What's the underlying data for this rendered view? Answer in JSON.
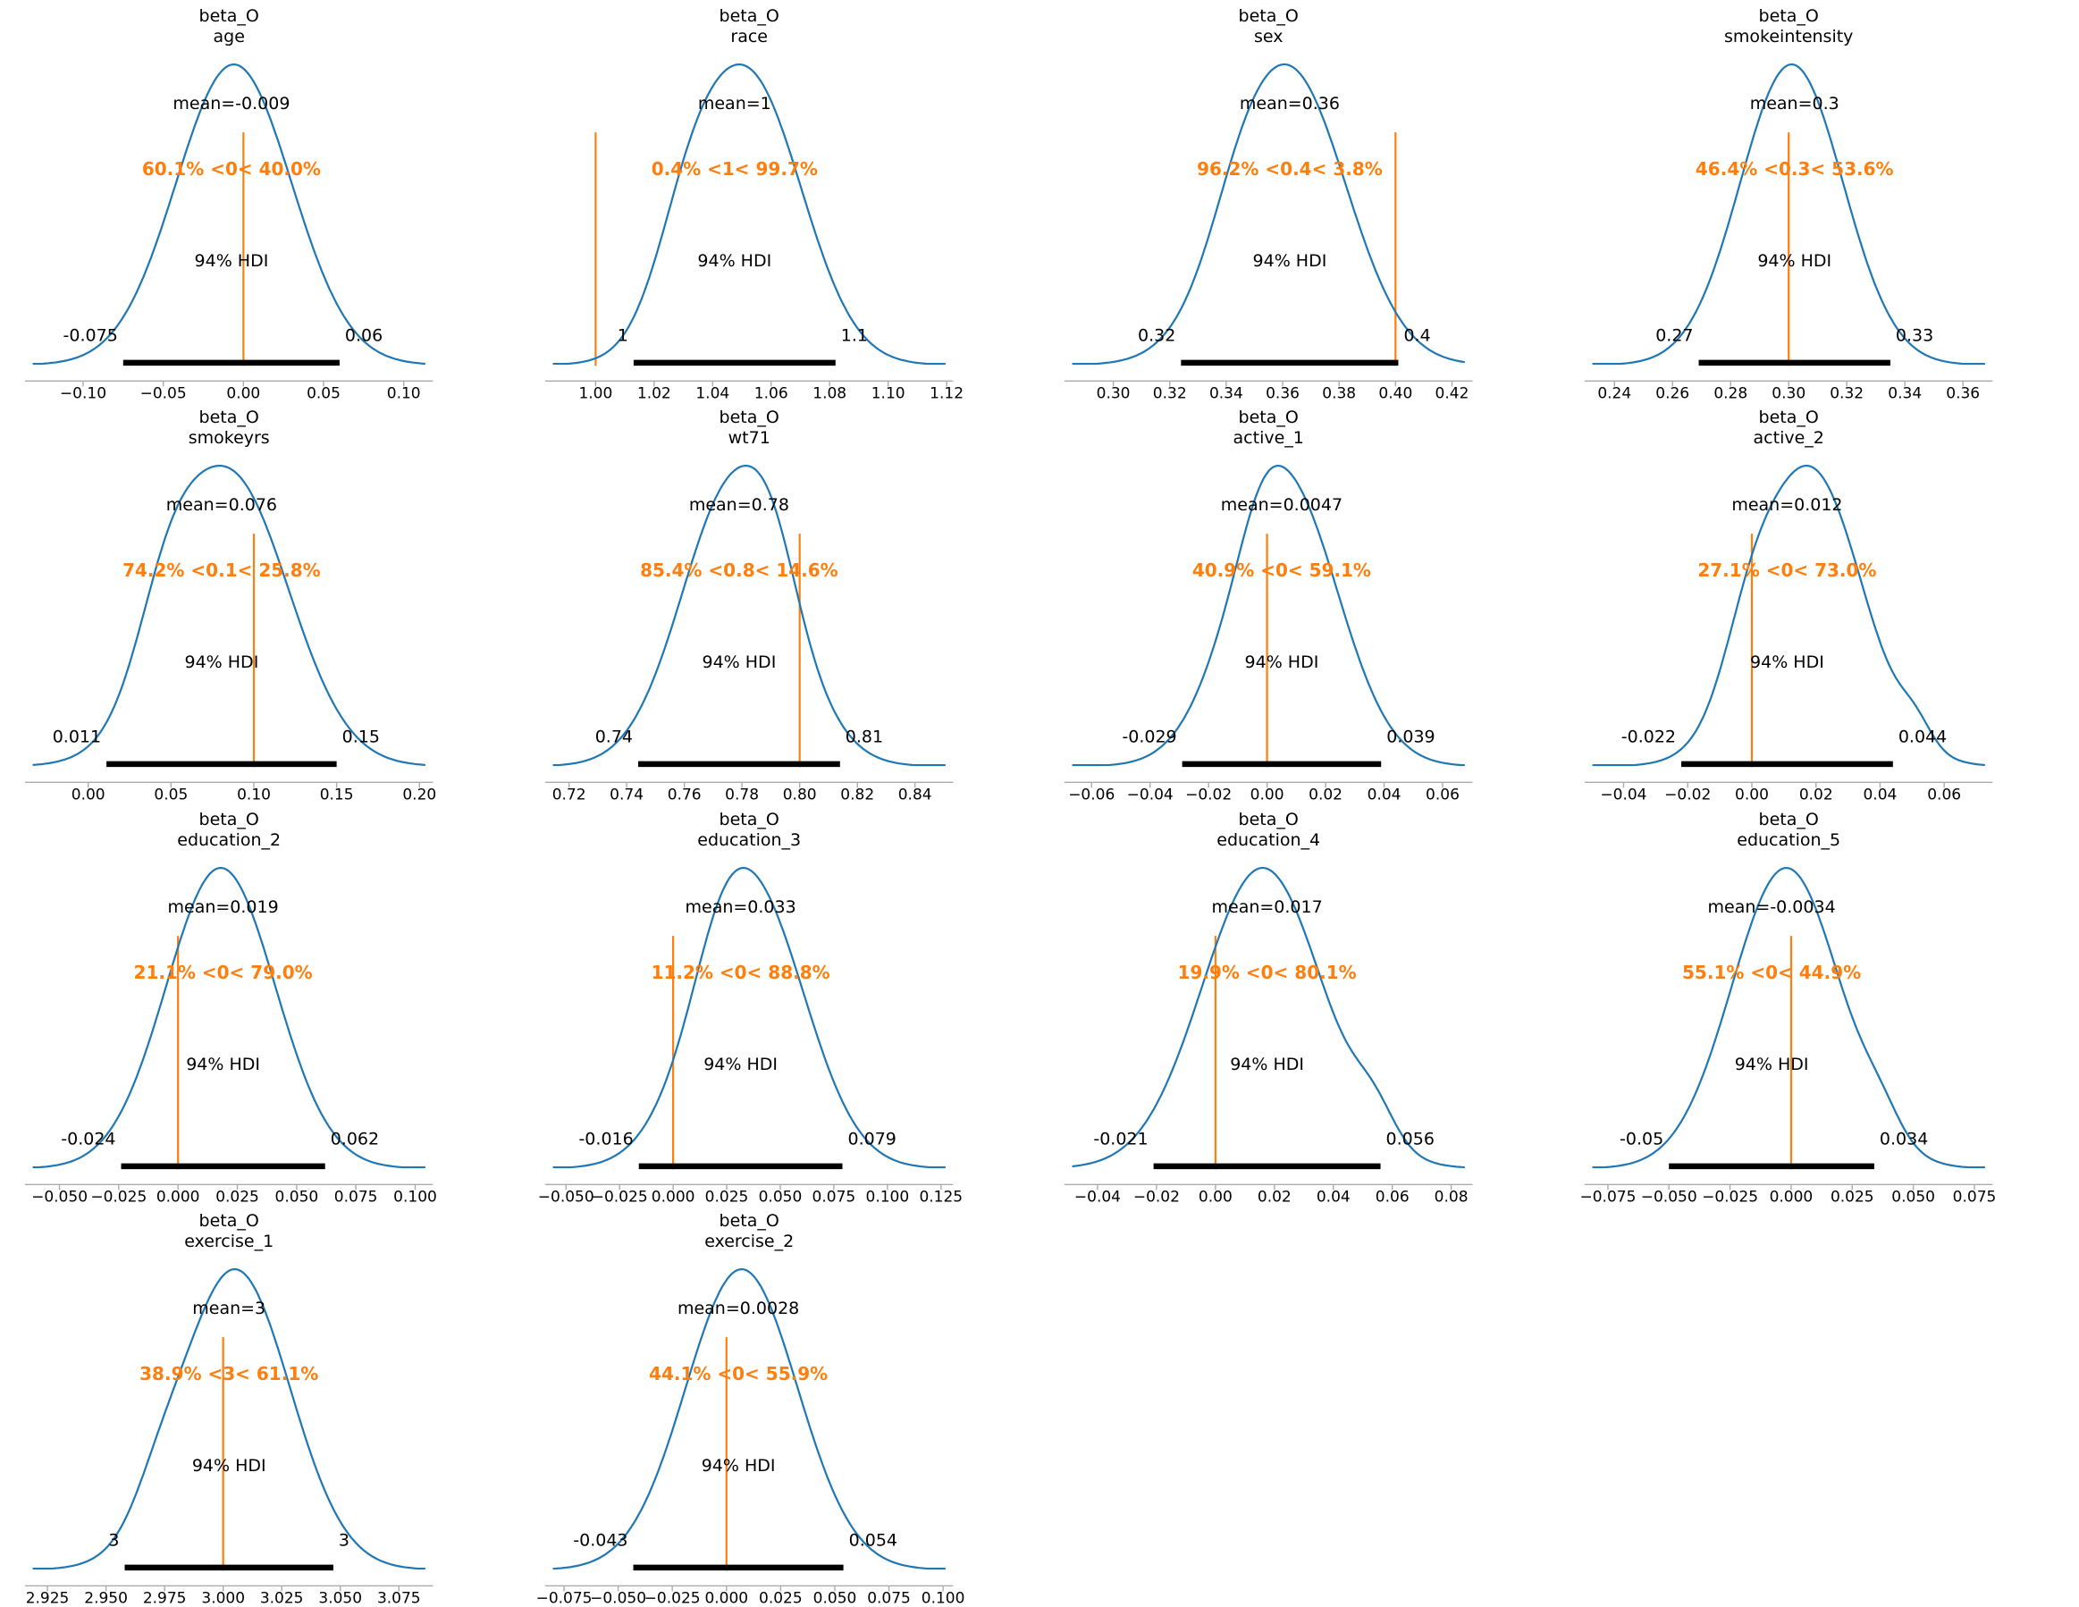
{
  "figure_title": "",
  "chart_data": {
    "type": "kde",
    "description": "Grid of ArviZ-style posterior density plots for coefficients of beta_O",
    "grid": {
      "columns": 4,
      "rows": 4,
      "filled_cells": 14
    },
    "legend_position": "none",
    "grid_lines": false,
    "colors": {
      "curve": "#1f77b4",
      "ref_line": "#ff7f0e",
      "rope_text": "#ff7f0e",
      "hdi_bar": "#000000",
      "axis": "#ababab",
      "text": "#000000",
      "background": "#ffffff"
    },
    "plots": [
      {
        "variable": "age",
        "title": [
          "beta_O",
          "age"
        ],
        "mean_label": "mean=-0.009",
        "mean": -0.009,
        "rope_label": "60.1% <0< 40.0%",
        "pct_below": 60.1,
        "ref_val": 0,
        "pct_above": 40.0,
        "hdi_text": "94% HDI",
        "hdi": [
          -0.075,
          0.06
        ],
        "hdi_labels": [
          "-0.075",
          "0.06"
        ],
        "x_range": [
          -0.134,
          0.116
        ],
        "ticks": [
          -0.1,
          -0.05,
          0.0,
          0.05,
          0.1
        ],
        "tick_labels": [
          "−0.10",
          "−0.05",
          "0.00",
          "0.05",
          "0.10"
        ],
        "curve": {
          "mu": -0.006,
          "sigma": 0.036,
          "bumps": []
        }
      },
      {
        "variable": "race",
        "title": [
          "beta_O",
          "race"
        ],
        "mean_label": "mean=1",
        "mean": 1.048,
        "rope_label": "0.4% <1< 99.7%",
        "pct_below": 0.4,
        "ref_val": 1,
        "pct_above": 99.7,
        "hdi_text": "94% HDI",
        "hdi": [
          1.013,
          1.082
        ],
        "hdi_labels": [
          "1",
          "1.1"
        ],
        "x_range": [
          0.984,
          1.121
        ],
        "ticks": [
          1.0,
          1.02,
          1.04,
          1.06,
          1.08,
          1.1,
          1.12
        ],
        "tick_labels": [
          "1.00",
          "1.02",
          "1.04",
          "1.06",
          "1.08",
          "1.10",
          "1.12"
        ],
        "curve": {
          "mu": 1.052,
          "sigma": 0.0185,
          "bumps": [
            [
              1.031,
              0.011,
              0.22
            ]
          ]
        }
      },
      {
        "variable": "sex",
        "title": [
          "beta_O",
          "sex"
        ],
        "mean_label": "mean=0.36",
        "mean": 0.36,
        "rope_label": "96.2% <0.4< 3.8%",
        "pct_below": 96.2,
        "ref_val": 0.4,
        "pct_above": 3.8,
        "hdi_text": "94% HDI",
        "hdi": [
          0.324,
          0.401
        ],
        "hdi_labels": [
          "0.32",
          "0.4"
        ],
        "x_range": [
          0.284,
          0.426
        ],
        "ticks": [
          0.3,
          0.32,
          0.34,
          0.36,
          0.38,
          0.4,
          0.42
        ],
        "tick_labels": [
          "0.30",
          "0.32",
          "0.34",
          "0.36",
          "0.38",
          "0.40",
          "0.42"
        ],
        "curve": {
          "mu": 0.362,
          "sigma": 0.0205,
          "bumps": [
            [
              0.344,
              0.01,
              0.08
            ]
          ]
        }
      },
      {
        "variable": "smokeintensity",
        "title": [
          "beta_O",
          "smokeintensity"
        ],
        "mean_label": "mean=0.3",
        "mean": 0.3,
        "rope_label": "46.4% <0.3< 53.6%",
        "pct_below": 46.4,
        "ref_val": 0.3,
        "pct_above": 53.6,
        "hdi_text": "94% HDI",
        "hdi": [
          0.269,
          0.335
        ],
        "hdi_labels": [
          "0.27",
          "0.33"
        ],
        "x_range": [
          0.231,
          0.369
        ],
        "ticks": [
          0.24,
          0.26,
          0.28,
          0.3,
          0.32,
          0.34,
          0.36
        ],
        "tick_labels": [
          "0.24",
          "0.26",
          "0.28",
          "0.30",
          "0.32",
          "0.34",
          "0.36"
        ],
        "curve": {
          "mu": 0.301,
          "sigma": 0.0177,
          "bumps": []
        }
      },
      {
        "variable": "smokeyrs",
        "title": [
          "beta_O",
          "smokeyrs"
        ],
        "mean_label": "mean=0.076",
        "mean": 0.076,
        "rope_label": "74.2% <0.1< 25.8%",
        "pct_below": 74.2,
        "ref_val": 0.1,
        "pct_above": 25.8,
        "hdi_text": "94% HDI",
        "hdi": [
          0.011,
          0.15
        ],
        "hdi_labels": [
          "0.011",
          "0.15"
        ],
        "x_range": [
          -0.036,
          0.206
        ],
        "ticks": [
          0.0,
          0.05,
          0.1,
          0.15,
          0.2
        ],
        "tick_labels": [
          "0.00",
          "0.05",
          "0.10",
          "0.15",
          "0.20"
        ],
        "curve": {
          "mu": 0.085,
          "sigma": 0.036,
          "bumps": [
            [
              0.047,
              0.018,
              0.22
            ]
          ]
        }
      },
      {
        "variable": "wt71",
        "title": [
          "beta_O",
          "wt71"
        ],
        "mean_label": "mean=0.78",
        "mean": 0.78,
        "rope_label": "85.4% <0.8< 14.6%",
        "pct_below": 85.4,
        "ref_val": 0.8,
        "pct_above": 14.6,
        "hdi_text": "94% HDI",
        "hdi": [
          0.744,
          0.814
        ],
        "hdi_labels": [
          "0.74",
          "0.81"
        ],
        "x_range": [
          0.713,
          0.852
        ],
        "ticks": [
          0.72,
          0.74,
          0.76,
          0.78,
          0.8,
          0.82,
          0.84
        ],
        "tick_labels": [
          "0.72",
          "0.74",
          "0.76",
          "0.78",
          "0.80",
          "0.82",
          "0.84"
        ],
        "curve": {
          "mu": 0.778,
          "sigma": 0.0186,
          "bumps": [
            [
              0.791,
              0.008,
              0.13
            ]
          ]
        }
      },
      {
        "variable": "active_1",
        "title": [
          "beta_O",
          "active_1"
        ],
        "mean_label": "mean=0.0047",
        "mean": 0.0047,
        "rope_label": "40.9% <0< 59.1%",
        "pct_below": 40.9,
        "ref_val": 0,
        "pct_above": 59.1,
        "hdi_text": "94% HDI",
        "hdi": [
          -0.029,
          0.039
        ],
        "hdi_labels": [
          "-0.029",
          "0.039"
        ],
        "x_range": [
          -0.068,
          0.069
        ],
        "ticks": [
          -0.06,
          -0.04,
          -0.02,
          0.0,
          0.02,
          0.04,
          0.06
        ],
        "tick_labels": [
          "−0.06",
          "−0.04",
          "−0.02",
          "0.00",
          "0.02",
          "0.04",
          "0.06"
        ],
        "curve": {
          "mu": 0.006,
          "sigma": 0.0182,
          "bumps": [
            [
              -0.002,
              0.007,
              0.08
            ]
          ]
        }
      },
      {
        "variable": "active_2",
        "title": [
          "beta_O",
          "active_2"
        ],
        "mean_label": "mean=0.012",
        "mean": 0.012,
        "rope_label": "27.1% <0< 73.0%",
        "pct_below": 27.1,
        "ref_val": 0,
        "pct_above": 73.0,
        "hdi_text": "94% HDI",
        "hdi": [
          -0.022,
          0.044
        ],
        "hdi_labels": [
          "-0.022",
          "0.044"
        ],
        "x_range": [
          -0.051,
          0.074
        ],
        "ticks": [
          -0.04,
          -0.02,
          0.0,
          0.02,
          0.04,
          0.06
        ],
        "tick_labels": [
          "−0.04",
          "−0.02",
          "0.00",
          "0.02",
          "0.04",
          "0.06"
        ],
        "curve": {
          "mu": 0.018,
          "sigma": 0.0165,
          "bumps": [
            [
              -0.001,
              0.008,
              0.16
            ],
            [
              0.051,
              0.005,
              0.07
            ]
          ]
        }
      },
      {
        "variable": "education_2",
        "title": [
          "beta_O",
          "education_2"
        ],
        "mean_label": "mean=0.019",
        "mean": 0.019,
        "rope_label": "21.1% <0< 79.0%",
        "pct_below": 21.1,
        "ref_val": 0,
        "pct_above": 79.0,
        "hdi_text": "94% HDI",
        "hdi": [
          -0.024,
          0.062
        ],
        "hdi_labels": [
          "-0.024",
          "0.062"
        ],
        "x_range": [
          -0.063,
          0.106
        ],
        "ticks": [
          -0.05,
          -0.025,
          0.0,
          0.025,
          0.05,
          0.075,
          0.1
        ],
        "tick_labels": [
          "−0.050",
          "−0.025",
          "0.000",
          "0.025",
          "0.050",
          "0.075",
          "0.100"
        ],
        "curve": {
          "mu": 0.018,
          "sigma": 0.023,
          "bumps": []
        }
      },
      {
        "variable": "education_3",
        "title": [
          "beta_O",
          "education_3"
        ],
        "mean_label": "mean=0.033",
        "mean": 0.033,
        "rope_label": "11.2% <0< 88.8%",
        "pct_below": 11.2,
        "ref_val": 0,
        "pct_above": 88.8,
        "hdi_text": "94% HDI",
        "hdi": [
          -0.016,
          0.079
        ],
        "hdi_labels": [
          "-0.016",
          "0.079"
        ],
        "x_range": [
          -0.058,
          0.129
        ],
        "ticks": [
          -0.05,
          -0.025,
          0.0,
          0.025,
          0.05,
          0.075,
          0.1,
          0.125
        ],
        "tick_labels": [
          "−0.050",
          "−0.025",
          "0.000",
          "0.025",
          "0.050",
          "0.075",
          "0.100",
          "0.125"
        ],
        "curve": {
          "mu": 0.036,
          "sigma": 0.0253,
          "bumps": [
            [
              0.022,
              0.012,
              0.1
            ]
          ]
        }
      },
      {
        "variable": "education_4",
        "title": [
          "beta_O",
          "education_4"
        ],
        "mean_label": "mean=0.017",
        "mean": 0.017,
        "rope_label": "19.9% <0< 80.1%",
        "pct_below": 19.9,
        "ref_val": 0,
        "pct_above": 80.1,
        "hdi_text": "94% HDI",
        "hdi": [
          -0.021,
          0.056
        ],
        "hdi_labels": [
          "-0.021",
          "0.056"
        ],
        "x_range": [
          -0.05,
          0.086
        ],
        "ticks": [
          -0.04,
          -0.02,
          0.0,
          0.02,
          0.04,
          0.06,
          0.08
        ],
        "tick_labels": [
          "−0.04",
          "−0.02",
          "0.00",
          "0.02",
          "0.04",
          "0.06",
          "0.08"
        ],
        "curve": {
          "mu": 0.016,
          "sigma": 0.0205,
          "bumps": [
            [
              0.054,
              0.007,
              0.1
            ]
          ]
        }
      },
      {
        "variable": "education_5",
        "title": [
          "beta_O",
          "education_5"
        ],
        "mean_label": "mean=-0.0034",
        "mean": -0.0034,
        "rope_label": "55.1% <0< 44.9%",
        "pct_below": 55.1,
        "ref_val": 0,
        "pct_above": 44.9,
        "hdi_text": "94% HDI",
        "hdi": [
          -0.05,
          0.034
        ],
        "hdi_labels": [
          "-0.05",
          "0.034"
        ],
        "x_range": [
          -0.083,
          0.081
        ],
        "ticks": [
          -0.075,
          -0.05,
          -0.025,
          0.0,
          0.025,
          0.05,
          0.075
        ],
        "tick_labels": [
          "−0.075",
          "−0.050",
          "−0.025",
          "0.000",
          "0.025",
          "0.050",
          "0.075"
        ],
        "curve": {
          "mu": -0.002,
          "sigma": 0.0223,
          "bumps": [
            [
              0.037,
              0.008,
              0.07
            ]
          ]
        }
      },
      {
        "variable": "exercise_1",
        "title": [
          "beta_O",
          "exercise_1"
        ],
        "mean_label": "mean=3",
        "mean": 3.0,
        "rope_label": "38.9% <3< 61.1%",
        "pct_below": 38.9,
        "ref_val": 3,
        "pct_above": 61.1,
        "hdi_text": "94% HDI",
        "hdi": [
          2.958,
          3.047
        ],
        "hdi_labels": [
          "3",
          "3"
        ],
        "x_range": [
          2.917,
          3.088
        ],
        "ticks": [
          2.925,
          2.95,
          2.975,
          3.0,
          3.025,
          3.05,
          3.075
        ],
        "tick_labels": [
          "2.925",
          "2.950",
          "2.975",
          "3.000",
          "3.025",
          "3.050",
          "3.075"
        ],
        "curve": {
          "mu": 3.005,
          "sigma": 0.0235,
          "bumps": [
            [
              2.972,
              0.01,
              0.08
            ]
          ]
        }
      },
      {
        "variable": "exercise_2",
        "title": [
          "beta_O",
          "exercise_2"
        ],
        "mean_label": "mean=0.0028",
        "mean": 0.0028,
        "rope_label": "44.1% <0< 55.9%",
        "pct_below": 44.1,
        "ref_val": 0,
        "pct_above": 55.9,
        "hdi_text": "94% HDI",
        "hdi": [
          -0.043,
          0.054
        ],
        "hdi_labels": [
          "-0.043",
          "0.054"
        ],
        "x_range": [
          -0.082,
          0.103
        ],
        "ticks": [
          -0.075,
          -0.05,
          -0.025,
          0.0,
          0.025,
          0.05,
          0.075,
          0.1
        ],
        "tick_labels": [
          "−0.075",
          "−0.050",
          "−0.025",
          "0.000",
          "0.025",
          "0.050",
          "0.075",
          "0.100"
        ],
        "curve": {
          "mu": 0.007,
          "sigma": 0.0258,
          "bumps": []
        }
      }
    ]
  }
}
